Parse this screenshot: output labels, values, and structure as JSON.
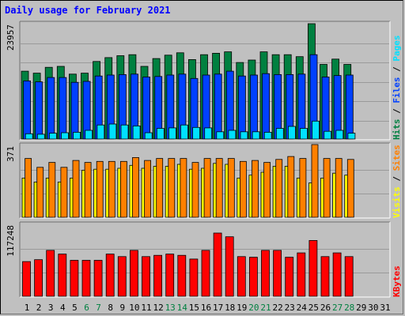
{
  "title": "Daily usage for February 2021",
  "chart_data": {
    "type": "bar",
    "days": [
      "1",
      "2",
      "3",
      "4",
      "5",
      "6",
      "7",
      "8",
      "9",
      "10",
      "11",
      "12",
      "13",
      "14",
      "15",
      "16",
      "17",
      "18",
      "19",
      "20",
      "21",
      "22",
      "23",
      "24",
      "25",
      "26",
      "27",
      "28",
      "29",
      "30",
      "31"
    ],
    "weekend_days": [
      "6",
      "7",
      "13",
      "14",
      "20",
      "21",
      "27",
      "28"
    ],
    "data_days": 28,
    "colors": {
      "hits": "#008040",
      "files": "#0040FF",
      "pages": "#00E0FF",
      "visits": "#FFFF00",
      "sites": "#FF8000",
      "kbytes": "#FF0000",
      "weekend_label": "#008040",
      "weekday_label": "#000000",
      "title": "#0000FF"
    },
    "panels": [
      {
        "id": "hits-files-pages",
        "ymax_label": "23957",
        "ymax": 23957,
        "legend": [
          {
            "text": "Hits",
            "color": "#008040"
          },
          {
            "text": " / ",
            "color": "#000000"
          },
          {
            "text": "Files",
            "color": "#0040FF"
          },
          {
            "text": " / ",
            "color": "#000000"
          },
          {
            "text": "Pages",
            "color": "#00E0FF"
          }
        ],
        "series": [
          {
            "name": "Hits",
            "values": [
              14000,
              13600,
              14800,
              15000,
              13400,
              13600,
              16000,
              16800,
              17200,
              17400,
              15000,
              16600,
              17300,
              17800,
              16400,
              17400,
              17700,
              18000,
              15800,
              16300,
              18000,
              17400,
              17400,
              17000,
              23800,
              15400,
              16500,
              15400
            ]
          },
          {
            "name": "Files",
            "values": [
              12000,
              11800,
              12700,
              12700,
              11700,
              11900,
              13000,
              13200,
              13300,
              13400,
              12800,
              12900,
              13200,
              13400,
              12500,
              13200,
              13400,
              14000,
              13000,
              13200,
              13500,
              13300,
              13300,
              13400,
              17400,
              12800,
              13100,
              13200
            ]
          },
          {
            "name": "Pages",
            "values": [
              1100,
              1000,
              1200,
              1300,
              1400,
              1800,
              2900,
              3100,
              2900,
              2700,
              1300,
              2200,
              2300,
              2900,
              2400,
              2300,
              1500,
              1800,
              1500,
              1500,
              1400,
              2200,
              2600,
              2200,
              3700,
              1600,
              1800,
              1200
            ]
          }
        ]
      },
      {
        "id": "visits-sites",
        "ymax_label": "371",
        "ymax": 371,
        "legend": [
          {
            "text": "Visits",
            "color": "#FFFF00"
          },
          {
            "text": " / ",
            "color": "#000000"
          },
          {
            "text": "Sites",
            "color": "#FF8000"
          }
        ],
        "series": [
          {
            "name": "Visits",
            "values": [
              200,
              180,
              200,
              180,
              200,
              240,
              245,
              245,
              250,
              265,
              250,
              260,
              260,
              270,
              245,
              250,
              275,
              270,
              200,
              215,
              230,
              260,
              260,
              200,
              175,
              200,
              225,
              215
            ]
          },
          {
            "name": "Sites",
            "values": [
              300,
              255,
              280,
              255,
              290,
              280,
              285,
              285,
              285,
              305,
              290,
              300,
              300,
              300,
              280,
              300,
              300,
              300,
              285,
              290,
              280,
              295,
              310,
              300,
              371,
              300,
              300,
              295
            ]
          }
        ]
      },
      {
        "id": "kbytes",
        "ymax_label": "117248",
        "ymax": 117248,
        "legend": [
          {
            "text": "KBytes",
            "color": "#FF0000"
          }
        ],
        "series": [
          {
            "name": "KBytes",
            "values": [
              56000,
              59000,
              74000,
              68000,
              58000,
              58000,
              58000,
              68000,
              64000,
              74000,
              64000,
              66000,
              68000,
              66000,
              60000,
              74000,
              102000,
              96000,
              64000,
              63000,
              74000,
              74000,
              63000,
              70000,
              90000,
              64000,
              70000,
              64000
            ]
          }
        ]
      }
    ]
  }
}
